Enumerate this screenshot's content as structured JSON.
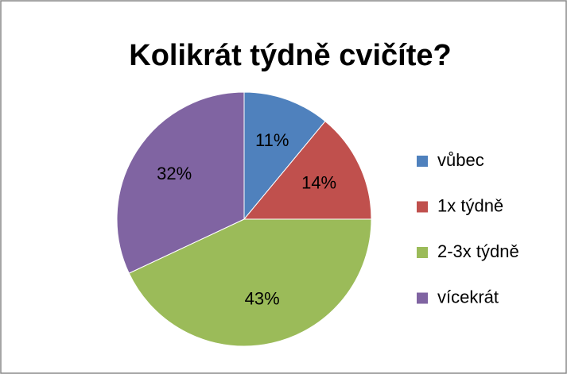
{
  "chart_data": {
    "type": "pie",
    "title": "Kolikrát týdně cvičíte?",
    "categories": [
      "vůbec",
      "1x týdně",
      "2-3x týdně",
      "vícekrát"
    ],
    "values": [
      11,
      14,
      43,
      32
    ],
    "value_labels": [
      "11%",
      "14%",
      "43%",
      "32%"
    ],
    "colors": [
      "#4f81bd",
      "#c0504d",
      "#9bbb59",
      "#8064a2"
    ],
    "legend": "right"
  }
}
